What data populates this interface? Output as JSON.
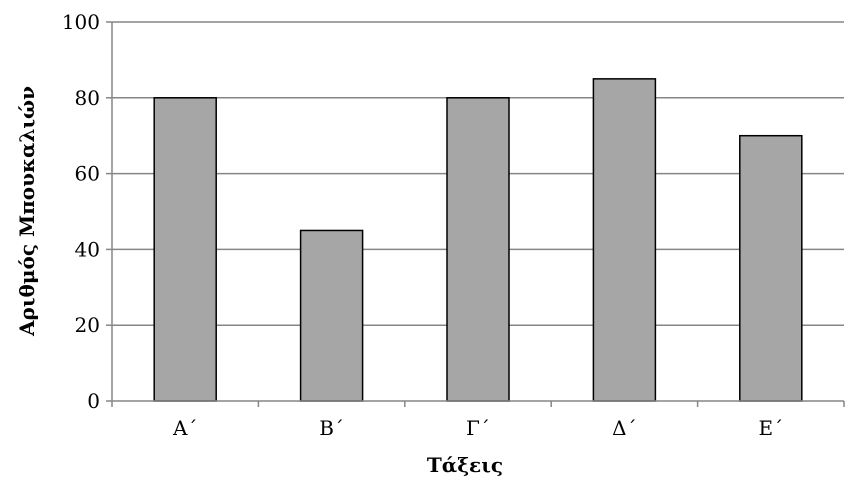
{
  "chart_data": {
    "type": "bar",
    "title": "",
    "categories": [
      "Α΄",
      "Β΄",
      "Γ΄",
      "Δ΄",
      "Ε΄"
    ],
    "values": [
      80,
      45,
      80,
      85,
      70
    ],
    "xlabel": "Τάξεις",
    "ylabel": "Αριθμός Μπουκαλιών",
    "ylim": [
      0,
      100
    ],
    "yticks": [
      0,
      20,
      40,
      60,
      80,
      100
    ],
    "grid": true,
    "legend": "none",
    "bar_color": "#a6a6a6",
    "bar_edge_color": "#000000",
    "grid_color": "#868686"
  }
}
